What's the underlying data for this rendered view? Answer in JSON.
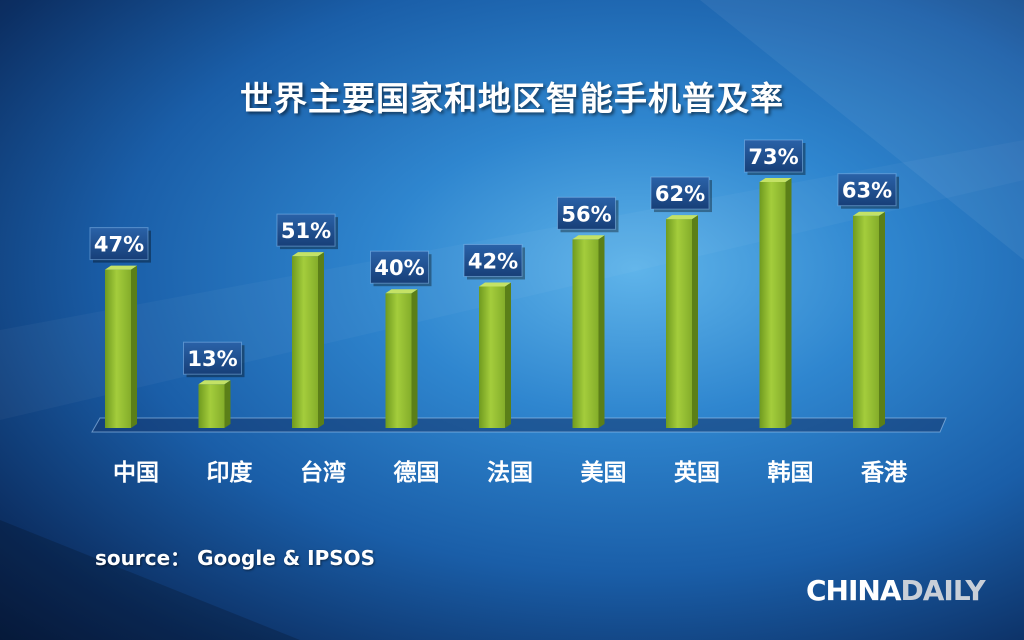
{
  "title": "世界主要国家和地区智能手机普及率",
  "source": "source：  Google & IPSOS",
  "logo": {
    "part1": "CHINA",
    "part2": "DAILY"
  },
  "colors": {
    "bar": "#8db52e",
    "label_box": "#1b4c8c"
  },
  "chart_data": {
    "type": "bar",
    "title": "世界主要国家和地区智能手机普及率",
    "categories": [
      "中国",
      "印度",
      "台湾",
      "德国",
      "法国",
      "美国",
      "英国",
      "韩国",
      "香港"
    ],
    "values": [
      47,
      13,
      51,
      40,
      42,
      56,
      62,
      73,
      63
    ],
    "data_labels": [
      "47%",
      "13%",
      "51%",
      "40%",
      "42%",
      "56%",
      "62%",
      "73%",
      "63%"
    ],
    "unit": "%",
    "ylim": [
      0,
      80
    ],
    "grid": false,
    "legend": "none"
  }
}
